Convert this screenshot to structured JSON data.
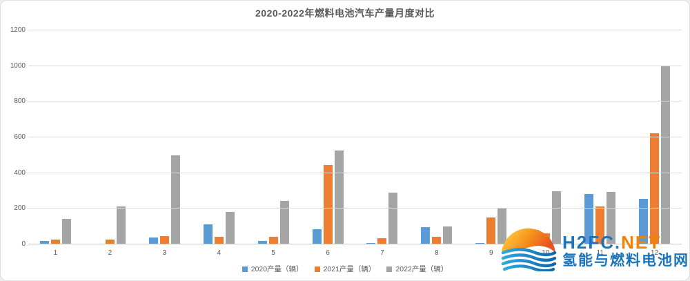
{
  "chart_data": {
    "type": "bar",
    "title": "2020-2022年燃料电池汽车产量月度对比",
    "categories": [
      "1",
      "2",
      "3",
      "4",
      "5",
      "6",
      "7",
      "8",
      "9",
      "10",
      "11",
      "12"
    ],
    "series": [
      {
        "name": "2020产量（辆）",
        "color": "#5B9BD5",
        "values": [
          20,
          2,
          38,
          111,
          18,
          84,
          8,
          98,
          7,
          81,
          283,
          257
        ]
      },
      {
        "name": "2021产量（辆）",
        "color": "#ED7D31",
        "values": [
          27,
          28,
          47,
          42,
          43,
          445,
          35,
          43,
          152,
          63,
          213,
          625
        ]
      },
      {
        "name": "2022产量（辆）",
        "color": "#A5A5A5",
        "values": [
          145,
          213,
          500,
          182,
          245,
          527,
          292,
          100,
          200,
          298,
          296,
          1000
        ]
      }
    ],
    "xlabel": "",
    "ylabel": "",
    "ylim": [
      0,
      1200
    ],
    "yticks": [
      0,
      200,
      400,
      600,
      800,
      1000,
      1200
    ],
    "grid": "horizontal",
    "legend_position": "bottom"
  },
  "watermark": {
    "brand_blue": "H2FC",
    "dot": ".",
    "brand_orange": "NET",
    "subtitle": "氢能与燃料电池网",
    "colors": {
      "blue": "#1B75BC",
      "orange": "#F08300"
    }
  },
  "colors": {
    "text": "#595959",
    "gridline": "#D9D9D9",
    "axis_line": "#C9C9C9",
    "background": "#FFFFFF"
  }
}
